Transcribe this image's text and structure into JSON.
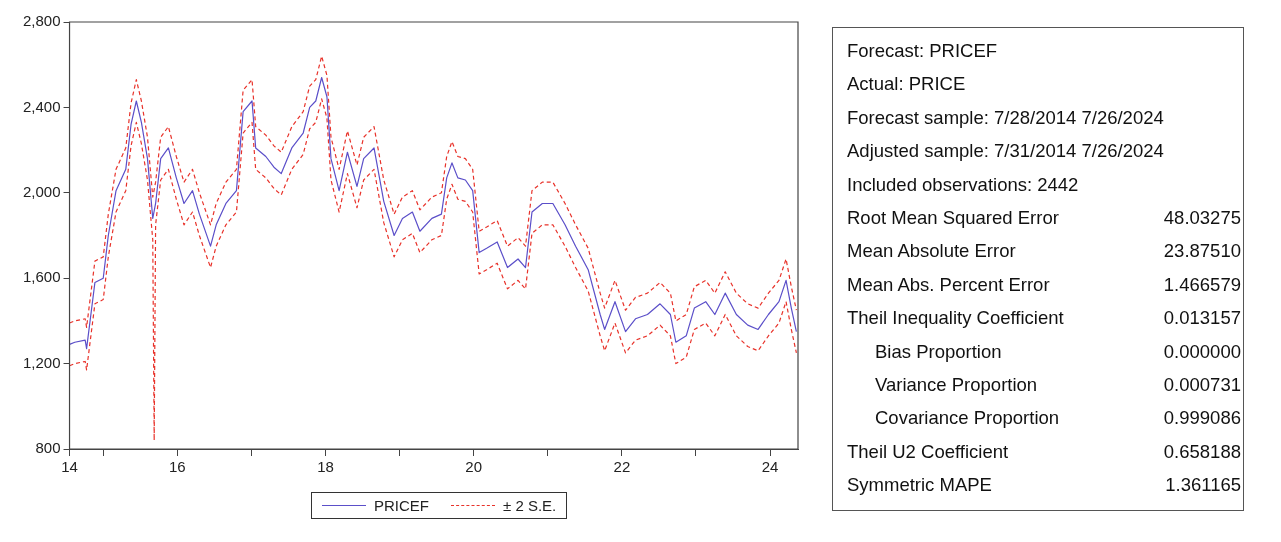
{
  "chart_data": [
    {
      "type": "line",
      "legend": "bottom",
      "marker": "none",
      "grid": false,
      "xlim": [
        "2014-07-19",
        "2024-05-18"
      ],
      "xticks": [
        {
          "value": "2014-07-19",
          "label": "14"
        },
        {
          "value": "2015-01-01",
          "label": null
        },
        {
          "value": "2016-01-01",
          "label": "16"
        },
        {
          "value": "2017-01-01",
          "label": null
        },
        {
          "value": "2018-01-01",
          "label": "18"
        },
        {
          "value": "2019-01-01",
          "label": null
        },
        {
          "value": "2020-01-01",
          "label": "20"
        },
        {
          "value": "2021-01-01",
          "label": null
        },
        {
          "value": "2022-01-01",
          "label": "22"
        },
        {
          "value": "2023-01-01",
          "label": null
        },
        {
          "value": "2024-01-01",
          "label": "24"
        }
      ],
      "ylim": [
        800,
        2800
      ],
      "yticks": [
        {
          "value": 800,
          "label": "800"
        },
        {
          "value": 1200,
          "label": "1,200"
        },
        {
          "value": 1600,
          "label": "1,600"
        },
        {
          "value": 2000,
          "label": "2,000"
        },
        {
          "value": 2400,
          "label": "2,400"
        },
        {
          "value": 2800,
          "label": "2,800"
        }
      ],
      "x": [
        "2014-07-19",
        "2014-08-14",
        "2014-10-04",
        "2014-10-11",
        "2014-11-21",
        "2015-01-01",
        "2015-01-26",
        "2015-03-05",
        "2015-04-22",
        "2015-05-18",
        "2015-06-13",
        "2015-07-08",
        "2015-08-07",
        "2015-09-02",
        "2015-09-16",
        "2015-10-11",
        "2015-11-18",
        "2015-12-27",
        "2016-02-03",
        "2016-03-16",
        "2016-04-19",
        "2016-06-13",
        "2016-07-11",
        "2016-08-28",
        "2016-10-19",
        "2016-11-21",
        "2017-01-04",
        "2017-01-22",
        "2017-03-13",
        "2017-04-22",
        "2017-05-28",
        "2017-07-19",
        "2017-09-13",
        "2017-10-15",
        "2017-11-14",
        "2017-12-13",
        "2018-01-08",
        "2018-01-28",
        "2018-03-09",
        "2018-04-19",
        "2018-06-05",
        "2018-07-08",
        "2018-08-28",
        "2018-10-15",
        "2018-12-05",
        "2019-01-15",
        "2019-03-05",
        "2019-04-11",
        "2019-06-09",
        "2019-07-26",
        "2019-08-21",
        "2019-09-16",
        "2019-10-15",
        "2019-11-21",
        "2019-12-27",
        "2020-01-28",
        "2020-03-05",
        "2020-04-26",
        "2020-06-16",
        "2020-08-07",
        "2020-09-13",
        "2020-10-15",
        "2020-12-05",
        "2021-01-26",
        "2021-03-27",
        "2021-05-18",
        "2021-07-19",
        "2021-09-16",
        "2021-10-08",
        "2021-11-28",
        "2022-01-19",
        "2022-03-09",
        "2022-05-07",
        "2022-07-08",
        "2022-08-28",
        "2022-09-24",
        "2022-11-14",
        "2022-12-24",
        "2023-02-18",
        "2023-04-04",
        "2023-05-25",
        "2023-07-19",
        "2023-09-13",
        "2023-11-03",
        "2023-12-24",
        "2024-02-14",
        "2024-03-20",
        "2024-04-15",
        "2024-05-10"
      ],
      "series": [
        {
          "name": "PRICEF",
          "color": "#5b4fc9",
          "line_style": "solid",
          "values": [
            1290,
            1300,
            1310,
            1270,
            1580,
            1600,
            1800,
            2010,
            2110,
            2320,
            2430,
            2330,
            2160,
            1880,
            1950,
            2160,
            2210,
            2070,
            1950,
            2010,
            1900,
            1750,
            1850,
            1950,
            2010,
            2380,
            2430,
            2210,
            2170,
            2120,
            2090,
            2210,
            2280,
            2400,
            2430,
            2540,
            2450,
            2160,
            2010,
            2190,
            2030,
            2160,
            2210,
            1960,
            1800,
            1880,
            1910,
            1820,
            1880,
            1900,
            2070,
            2140,
            2070,
            2060,
            2010,
            1720,
            1740,
            1770,
            1650,
            1690,
            1650,
            1910,
            1950,
            1950,
            1850,
            1750,
            1640,
            1430,
            1360,
            1490,
            1350,
            1410,
            1430,
            1480,
            1430,
            1300,
            1330,
            1460,
            1490,
            1430,
            1530,
            1430,
            1380,
            1360,
            1430,
            1490,
            1590,
            1460,
            1350
          ]
        },
        {
          "name": "± 2 S.E.",
          "color": "#e8322a",
          "line_style": "dashed",
          "values": [
            1390,
            1400,
            1410,
            1370,
            1680,
            1700,
            1900,
            2110,
            2210,
            2420,
            2530,
            2430,
            2260,
            1980,
            2050,
            2260,
            2310,
            2170,
            2050,
            2110,
            2000,
            1850,
            1950,
            2050,
            2110,
            2480,
            2530,
            2310,
            2270,
            2220,
            2190,
            2310,
            2380,
            2500,
            2530,
            2640,
            2550,
            2260,
            2110,
            2290,
            2130,
            2260,
            2310,
            2060,
            1900,
            1980,
            2010,
            1920,
            1980,
            2000,
            2170,
            2240,
            2170,
            2160,
            2110,
            1820,
            1840,
            1870,
            1750,
            1790,
            1750,
            2010,
            2050,
            2050,
            1950,
            1850,
            1740,
            1530,
            1460,
            1590,
            1450,
            1510,
            1530,
            1580,
            1530,
            1400,
            1430,
            1560,
            1590,
            1530,
            1630,
            1530,
            1480,
            1460,
            1530,
            1590,
            1690,
            1560,
            1450
          ]
        },
        {
          "color": "#e8322a",
          "line_style": "dashed",
          "x": [
            "2014-07-19",
            "2014-08-14",
            "2014-10-04",
            "2014-10-11",
            "2014-11-21",
            "2015-01-01",
            "2015-01-26",
            "2015-03-05",
            "2015-04-22",
            "2015-05-18",
            "2015-06-13",
            "2015-07-08",
            "2015-08-07",
            "2015-09-02",
            "2015-09-09",
            "2015-09-16",
            "2015-10-11",
            "2015-11-18",
            "2015-12-27",
            "2016-02-03",
            "2016-03-16",
            "2016-04-19",
            "2016-06-13",
            "2016-07-11",
            "2016-08-28",
            "2016-10-19",
            "2016-11-21",
            "2017-01-04",
            "2017-01-22",
            "2017-03-13",
            "2017-04-22",
            "2017-05-28",
            "2017-07-19",
            "2017-09-13",
            "2017-10-15",
            "2017-11-14",
            "2017-12-13",
            "2018-01-08",
            "2018-01-28",
            "2018-03-09",
            "2018-04-19",
            "2018-06-05",
            "2018-07-08",
            "2018-08-28",
            "2018-10-15",
            "2018-12-05",
            "2019-01-15",
            "2019-03-05",
            "2019-04-11",
            "2019-06-09",
            "2019-07-26",
            "2019-08-21",
            "2019-09-16",
            "2019-10-15",
            "2019-11-21",
            "2019-12-27",
            "2020-01-28",
            "2020-03-05",
            "2020-04-26",
            "2020-06-16",
            "2020-08-07",
            "2020-09-13",
            "2020-10-15",
            "2020-12-05",
            "2021-01-26",
            "2021-03-27",
            "2021-05-18",
            "2021-07-19",
            "2021-09-16",
            "2021-10-08",
            "2021-11-28",
            "2022-01-19",
            "2022-03-09",
            "2022-05-07",
            "2022-07-08",
            "2022-08-28",
            "2022-09-24",
            "2022-11-14",
            "2022-12-24",
            "2023-02-18",
            "2023-04-04",
            "2023-05-25",
            "2023-07-19",
            "2023-09-13",
            "2023-11-03",
            "2023-12-24",
            "2024-02-14",
            "2024-03-20",
            "2024-04-15",
            "2024-05-10"
          ],
          "values": [
            1190,
            1200,
            1210,
            1170,
            1480,
            1500,
            1700,
            1910,
            2010,
            2220,
            2330,
            2230,
            2060,
            1780,
            840,
            1850,
            2060,
            2110,
            1970,
            1850,
            1910,
            1800,
            1650,
            1750,
            1850,
            1910,
            2280,
            2330,
            2110,
            2070,
            2020,
            1990,
            2110,
            2180,
            2300,
            2330,
            2440,
            2350,
            2060,
            1910,
            2090,
            1930,
            2060,
            2110,
            1860,
            1700,
            1780,
            1810,
            1720,
            1780,
            1800,
            1970,
            2040,
            1970,
            1960,
            1910,
            1620,
            1640,
            1670,
            1550,
            1590,
            1550,
            1810,
            1850,
            1850,
            1750,
            1650,
            1540,
            1330,
            1260,
            1390,
            1250,
            1310,
            1330,
            1380,
            1330,
            1200,
            1230,
            1360,
            1390,
            1330,
            1430,
            1330,
            1280,
            1260,
            1330,
            1390,
            1490,
            1360,
            1250
          ]
        }
      ]
    },
    {
      "type": "other",
      "annotations": [
        "Forecast: PRICEF",
        "Actual: PRICE",
        "Forecast sample: 7/28/2014 7/26/2024",
        "Adjusted sample: 7/31/2014 7/26/2024",
        "Included observations: 2442",
        "Root Mean Squared Error\t48.03275",
        "Mean Absolute Error\t23.87510",
        "Mean Abs. Percent Error\t1.466579",
        "Theil Inequality Coefficient\t0.013157",
        "Bias Proportion\t0.000000",
        "Variance Proportion\t0.000731",
        "Covariance Proportion\t0.999086",
        "Theil U2 Coefficient\t0.658188",
        "Symmetric MAPE\t1.361165"
      ]
    }
  ]
}
